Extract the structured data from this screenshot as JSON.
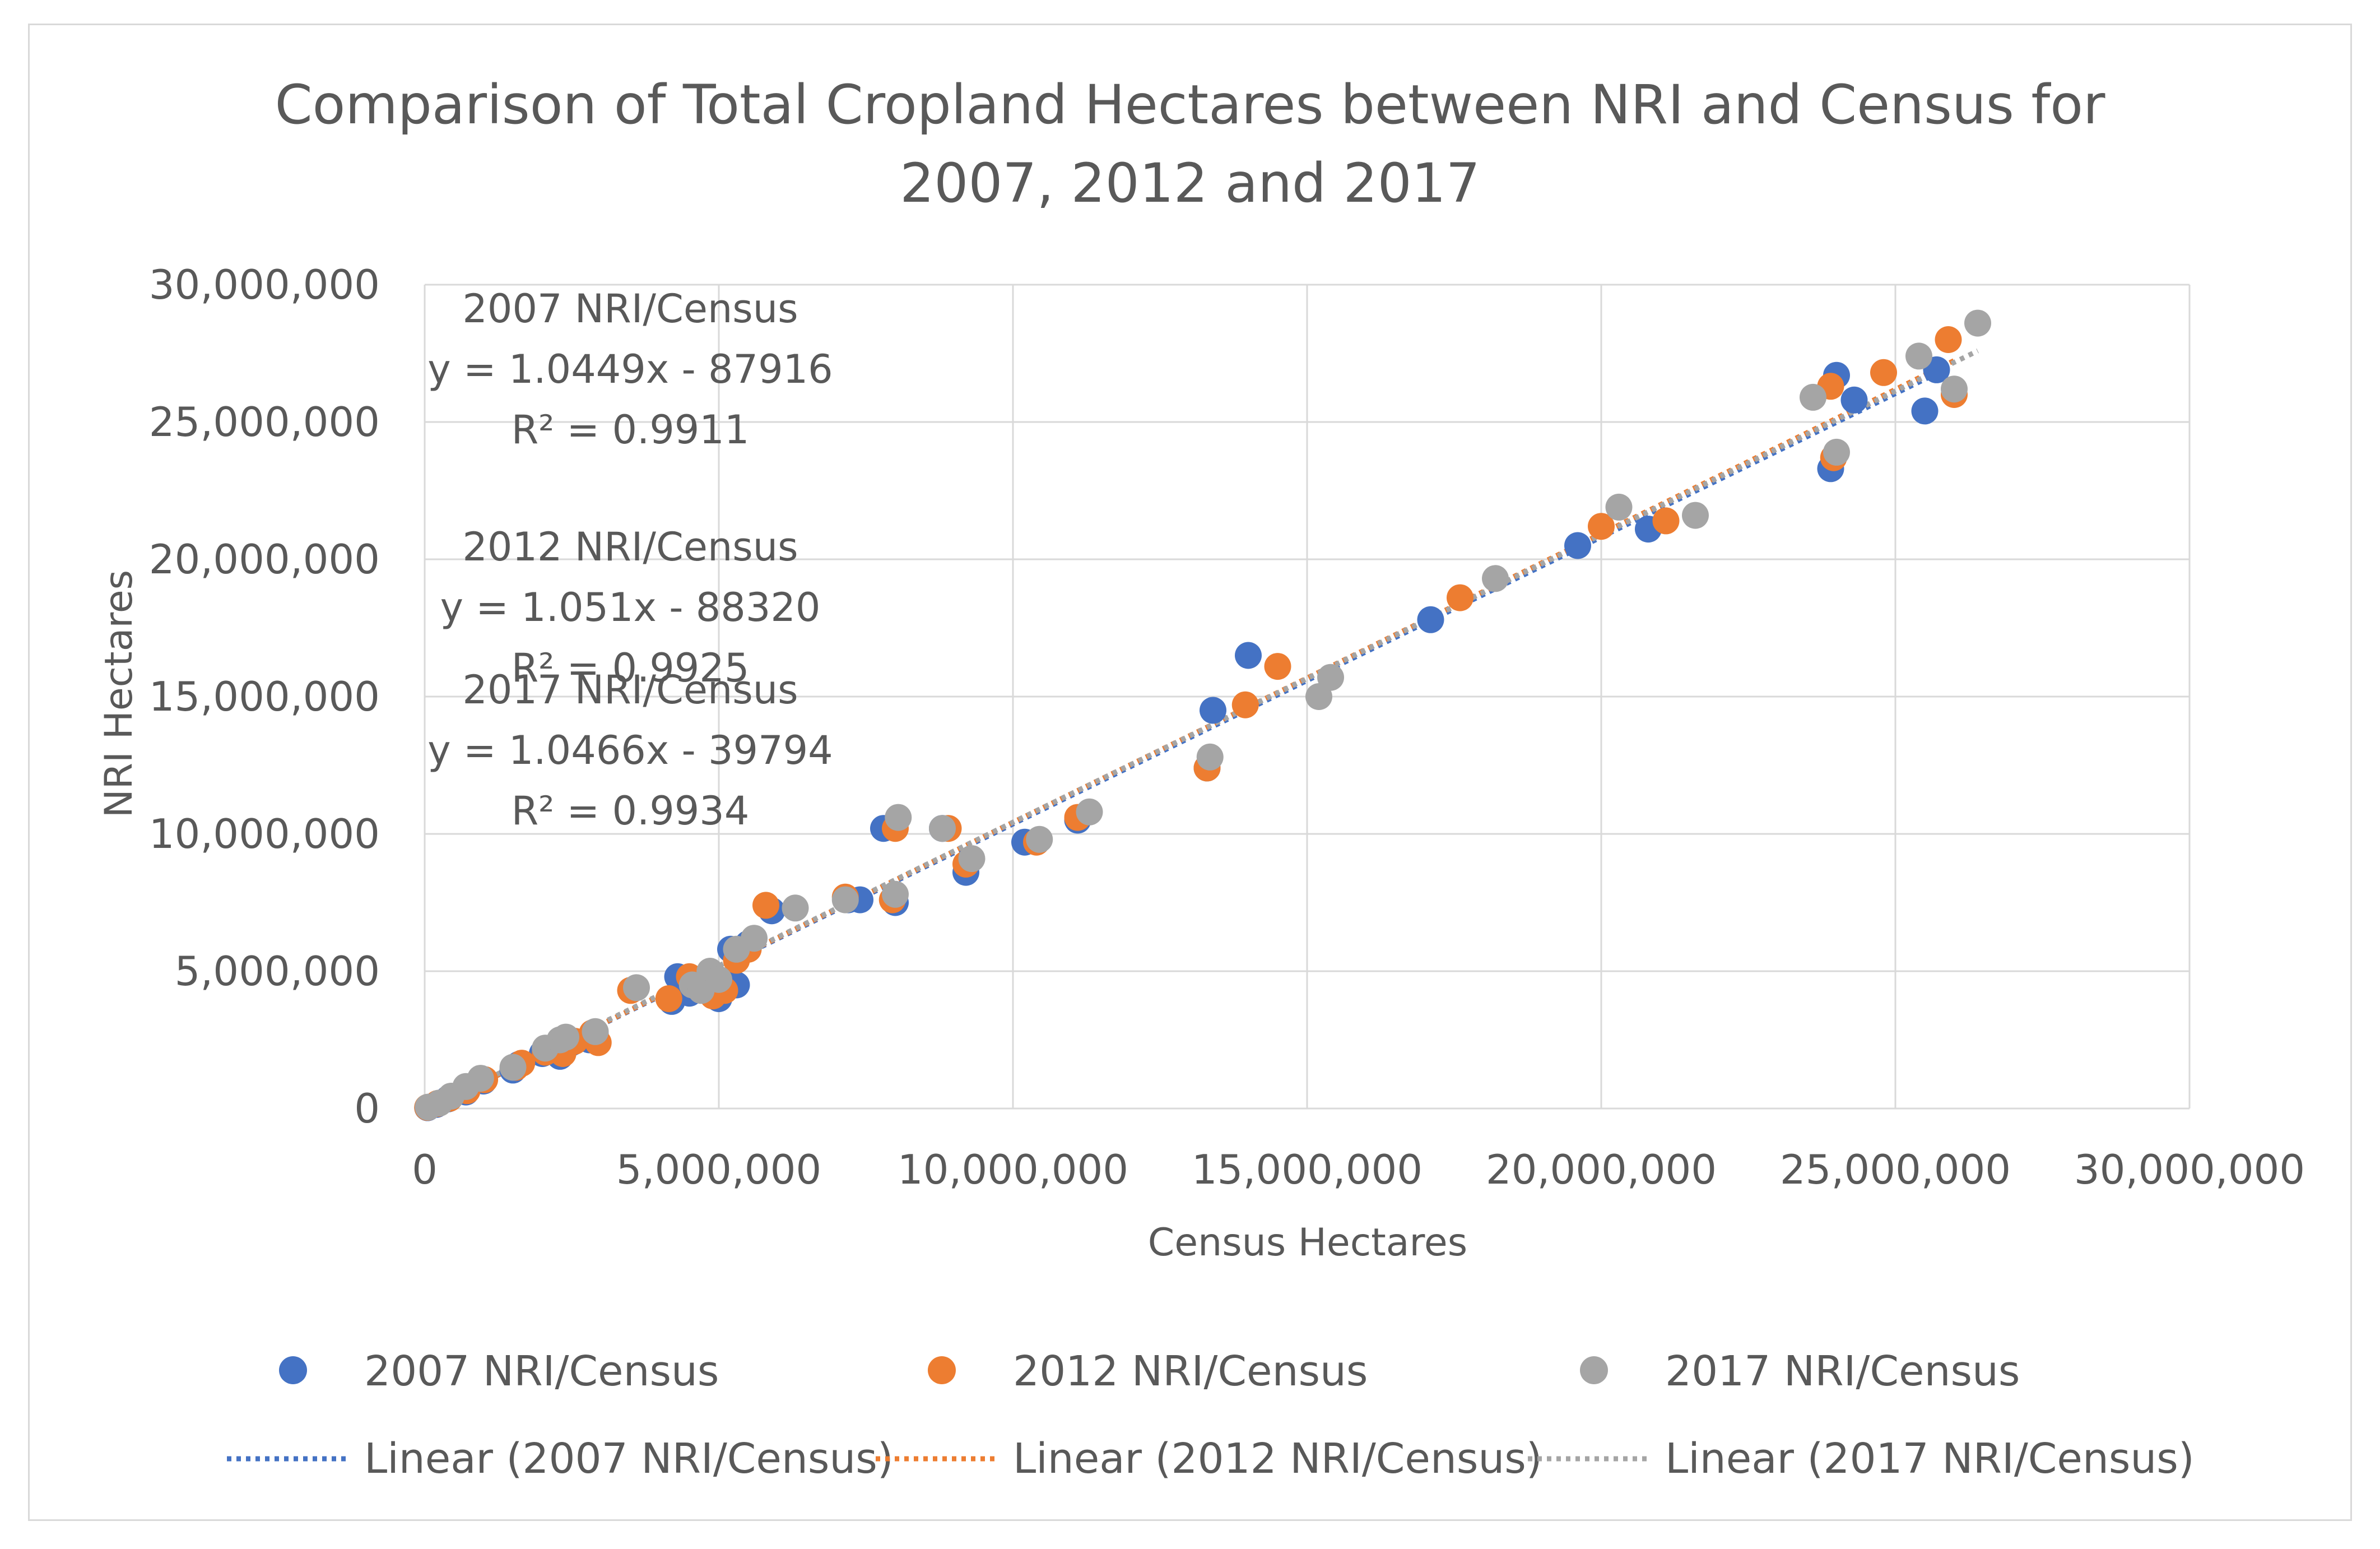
{
  "chart_data": {
    "type": "scatter",
    "title": [
      "Comparison of Total Cropland Hectares between NRI and Census for",
      "2007, 2012 and 2017"
    ],
    "xlabel": "Census Hectares",
    "ylabel": "NRI Hectares",
    "xlim": [
      0,
      30000000
    ],
    "ylim": [
      0,
      30000000
    ],
    "x_ticks": [
      0,
      5000000,
      10000000,
      15000000,
      20000000,
      25000000,
      30000000
    ],
    "y_ticks": [
      0,
      5000000,
      10000000,
      15000000,
      20000000,
      25000000,
      30000000
    ],
    "x_tick_labels": [
      "0",
      "5,000,000",
      "10,000,000",
      "15,000,000",
      "20,000,000",
      "25,000,000",
      "30,000,000"
    ],
    "y_tick_labels": [
      "0",
      "5,000,000",
      "10,000,000",
      "15,000,000",
      "20,000,000",
      "25,000,000",
      "30,000,000"
    ],
    "grid": true,
    "legend_position": "bottom",
    "series": [
      {
        "name": "2007 NRI/Census",
        "color": "#4472c4",
        "trendline": {
          "label": "Linear (2007 NRI/Census)",
          "slope": 1.0449,
          "intercept": -87916
        },
        "annotation": [
          "2007 NRI/Census",
          "y = 1.0449x - 87916",
          "R² = 0.9911"
        ],
        "points": [
          [
            50000,
            30000
          ],
          [
            200000,
            150000
          ],
          [
            400000,
            350000
          ],
          [
            700000,
            600000
          ],
          [
            1000000,
            1000000
          ],
          [
            1500000,
            1400000
          ],
          [
            1600000,
            1600000
          ],
          [
            2000000,
            2000000
          ],
          [
            2300000,
            1900000
          ],
          [
            2500000,
            2400000
          ],
          [
            2800000,
            2500000
          ],
          [
            2900000,
            2700000
          ],
          [
            4200000,
            3900000
          ],
          [
            4300000,
            4800000
          ],
          [
            4500000,
            4200000
          ],
          [
            4800000,
            4800000
          ],
          [
            5000000,
            4000000
          ],
          [
            5100000,
            4600000
          ],
          [
            5200000,
            5800000
          ],
          [
            5300000,
            4500000
          ],
          [
            5500000,
            6000000
          ],
          [
            5900000,
            7200000
          ],
          [
            7200000,
            7600000
          ],
          [
            7400000,
            7600000
          ],
          [
            7800000,
            10200000
          ],
          [
            8000000,
            7500000
          ],
          [
            8800000,
            10200000
          ],
          [
            9200000,
            8600000
          ],
          [
            10200000,
            9700000
          ],
          [
            11100000,
            10500000
          ],
          [
            13300000,
            12400000
          ],
          [
            13400000,
            14500000
          ],
          [
            14000000,
            16500000
          ],
          [
            17100000,
            17800000
          ],
          [
            19600000,
            20500000
          ],
          [
            20800000,
            21100000
          ],
          [
            23900000,
            23300000
          ],
          [
            24000000,
            26700000
          ],
          [
            24300000,
            25800000
          ],
          [
            25500000,
            25400000
          ],
          [
            25700000,
            26900000
          ]
        ]
      },
      {
        "name": "2012 NRI/Census",
        "color": "#ed7d31",
        "trendline": {
          "label": "Linear (2012 NRI/Census)",
          "slope": 1.051,
          "intercept": -88320
        },
        "annotation": [
          "2012 NRI/Census",
          "y = 1.051x - 88320",
          "R² = 0.9925"
        ],
        "points": [
          [
            50000,
            40000
          ],
          [
            220000,
            180000
          ],
          [
            420000,
            370000
          ],
          [
            720000,
            650000
          ],
          [
            1020000,
            1050000
          ],
          [
            1550000,
            1500000
          ],
          [
            1650000,
            1650000
          ],
          [
            2050000,
            2050000
          ],
          [
            2350000,
            2000000
          ],
          [
            2550000,
            2450000
          ],
          [
            2850000,
            2750000
          ],
          [
            2950000,
            2400000
          ],
          [
            3500000,
            4300000
          ],
          [
            4150000,
            4000000
          ],
          [
            4500000,
            4800000
          ],
          [
            4900000,
            4100000
          ],
          [
            5000000,
            4500000
          ],
          [
            5100000,
            4300000
          ],
          [
            5300000,
            5400000
          ],
          [
            5500000,
            5800000
          ],
          [
            5800000,
            7400000
          ],
          [
            7150000,
            7700000
          ],
          [
            7950000,
            7600000
          ],
          [
            8000000,
            10200000
          ],
          [
            8900000,
            10200000
          ],
          [
            9200000,
            8900000
          ],
          [
            10400000,
            9700000
          ],
          [
            11100000,
            10600000
          ],
          [
            13300000,
            12400000
          ],
          [
            13950000,
            14700000
          ],
          [
            14500000,
            16100000
          ],
          [
            17600000,
            18600000
          ],
          [
            20000000,
            21200000
          ],
          [
            21100000,
            21400000
          ],
          [
            23900000,
            26300000
          ],
          [
            23950000,
            23700000
          ],
          [
            24800000,
            26800000
          ],
          [
            25900000,
            28000000
          ],
          [
            26000000,
            26000000
          ]
        ]
      },
      {
        "name": "2017 NRI/Census",
        "color": "#a5a5a5",
        "trendline": {
          "label": "Linear (2017 NRI/Census)",
          "slope": 1.0466,
          "intercept": -39794
        },
        "annotation": [
          "2017 NRI/Census",
          "y = 1.0466x - 39794",
          "R² = 0.9934"
        ],
        "points": [
          [
            60000,
            50000
          ],
          [
            250000,
            200000
          ],
          [
            450000,
            450000
          ],
          [
            700000,
            800000
          ],
          [
            950000,
            1100000
          ],
          [
            1500000,
            1500000
          ],
          [
            2050000,
            2200000
          ],
          [
            2300000,
            2500000
          ],
          [
            2400000,
            2600000
          ],
          [
            2900000,
            2800000
          ],
          [
            3600000,
            4400000
          ],
          [
            4550000,
            4500000
          ],
          [
            4700000,
            4300000
          ],
          [
            4850000,
            5000000
          ],
          [
            5000000,
            4700000
          ],
          [
            5300000,
            5800000
          ],
          [
            5600000,
            6200000
          ],
          [
            6300000,
            7300000
          ],
          [
            7150000,
            7600000
          ],
          [
            8000000,
            7800000
          ],
          [
            8050000,
            10600000
          ],
          [
            8800000,
            10200000
          ],
          [
            9300000,
            9100000
          ],
          [
            10450000,
            9800000
          ],
          [
            11300000,
            10800000
          ],
          [
            13350000,
            12800000
          ],
          [
            15200000,
            15000000
          ],
          [
            15400000,
            15700000
          ],
          [
            18200000,
            19300000
          ],
          [
            20300000,
            21900000
          ],
          [
            21600000,
            21600000
          ],
          [
            23600000,
            25900000
          ],
          [
            24000000,
            23900000
          ],
          [
            25400000,
            27400000
          ],
          [
            26000000,
            26200000
          ],
          [
            26400000,
            28600000
          ]
        ]
      }
    ]
  }
}
